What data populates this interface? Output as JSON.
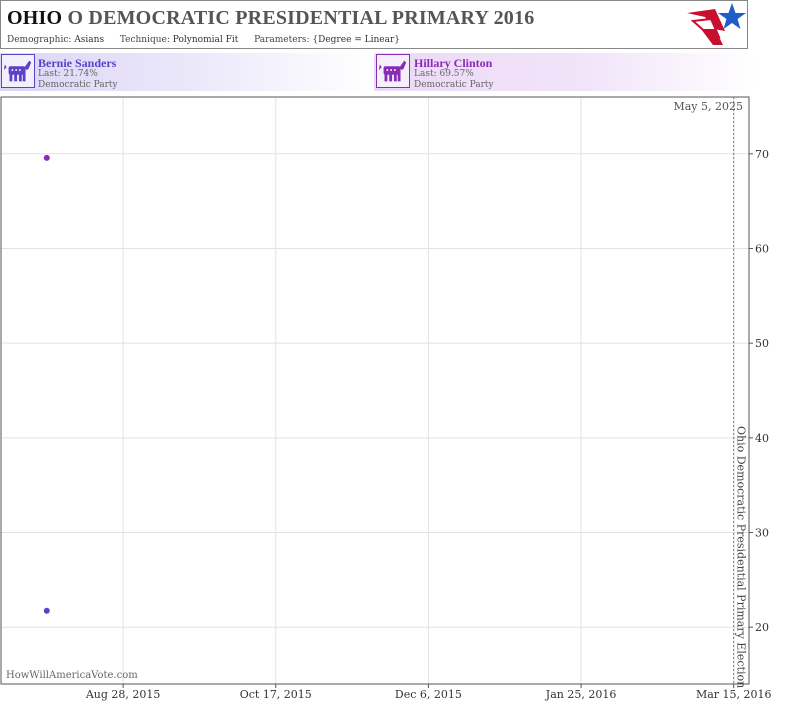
{
  "header": {
    "title_state": "OHIO",
    "title_rest": "O DEMOCRATIC PRESIDENTIAL PRIMARY 2016",
    "demographic_label": "Demographic:",
    "demographic_value": "Asians",
    "technique_label": "Technique:",
    "technique_value": "Polynomial Fit",
    "parameters_label": "Parameters:",
    "parameters_value": "{Degree = Linear}",
    "logo_icon": "flag-star-icon"
  },
  "candidates": [
    {
      "name": "Bernie Sanders",
      "last": "Last: 21.74%",
      "party": "Democratic Party",
      "color": "#5a43c8",
      "icon": "democratic-donkey-icon"
    },
    {
      "name": "Hillary Clinton",
      "last": "Last: 69.57%",
      "party": "Democratic Party",
      "color": "#8a2bb5",
      "icon": "democratic-donkey-icon"
    }
  ],
  "chart_data": {
    "type": "scatter",
    "x_ticks": [
      "Aug 28, 2015",
      "Oct 17, 2015",
      "Dec 6, 2015",
      "Jan 25, 2016",
      "Mar 15, 2016"
    ],
    "y_ticks": [
      20,
      30,
      40,
      50,
      60,
      70
    ],
    "xlim": [
      "Jul 19, 2015",
      "Mar 20, 2016"
    ],
    "ylim": [
      14,
      76
    ],
    "grid": true,
    "series": [
      {
        "name": "Bernie Sanders",
        "color": "#5a43c8",
        "points": [
          {
            "x": "Aug 3, 2015",
            "y": 21.74
          }
        ]
      },
      {
        "name": "Hillary Clinton",
        "color": "#8a2bb5",
        "points": [
          {
            "x": "Aug 3, 2015",
            "y": 69.57
          }
        ]
      }
    ],
    "event_line": {
      "date": "Mar 15, 2016",
      "label": "Ohio Democratic Presidential Primary Election"
    },
    "corner_date": "May 5, 2025",
    "watermark": "HowWillAmericaVote.com"
  }
}
